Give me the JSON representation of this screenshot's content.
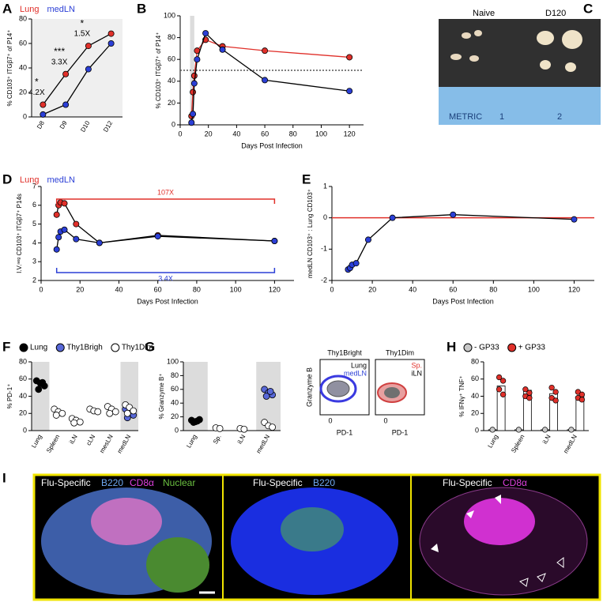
{
  "chart_data": [
    {
      "type": "line",
      "panel": "A",
      "ylabel": "% CD103⁺ ITGβ7⁺ of P14⁺",
      "plot_background": "#efefef",
      "categories": [
        "D8",
        "D9",
        "D10",
        "D12"
      ],
      "ylim": [
        0,
        80
      ],
      "yticks": [
        0,
        20,
        40,
        60,
        80
      ],
      "legend": "top",
      "series": [
        {
          "name": "Lung",
          "color": "#e0302a",
          "line_color": "#000000",
          "values": [
            10,
            35,
            58,
            68
          ]
        },
        {
          "name": "medLN",
          "color": "#2b3fd6",
          "line_color": "#000000",
          "values": [
            2,
            10,
            39,
            60
          ]
        }
      ],
      "annotations": [
        {
          "stars": "*",
          "text": "4.2X"
        },
        {
          "stars": "***",
          "text": "3.3X"
        },
        {
          "stars": "*",
          "text": "1.5X"
        }
      ]
    },
    {
      "type": "line",
      "panel": "B",
      "ylabel": "% CD103⁺ ITGβ7⁺ of P14⁺",
      "xlabel": "Days Post Infection",
      "x": [
        8,
        9,
        10,
        12,
        18,
        30,
        60,
        120
      ],
      "xlim": [
        0,
        130
      ],
      "xticks": [
        0,
        20,
        40,
        60,
        80,
        100,
        120
      ],
      "ylim": [
        0,
        100
      ],
      "yticks": [
        0,
        20,
        40,
        60,
        80,
        100
      ],
      "shaded": [
        7,
        10
      ],
      "hline": 50,
      "hline_color": "#555555",
      "hline_dash": "2,2",
      "series": [
        {
          "name": "Lung",
          "color": "#e0302a",
          "line_color": "#e0302a",
          "values": [
            8,
            30,
            45,
            68,
            78,
            72,
            68,
            62
          ]
        },
        {
          "name": "medLN",
          "color": "#2b3fd6",
          "line_color": "#000000",
          "values": [
            2,
            10,
            38,
            60,
            84,
            69,
            41,
            31
          ]
        }
      ]
    },
    {
      "type": "line",
      "panel": "D",
      "ylabel": "I.V.ⁿᵉᵍ CD103⁺ ITGβ7⁺ P14s",
      "xlabel": "Days Post Infection",
      "legend": "top",
      "x": [
        8,
        9,
        10,
        12,
        18,
        30,
        60,
        120
      ],
      "xlim": [
        0,
        130
      ],
      "xticks": [
        0,
        20,
        40,
        60,
        80,
        100,
        120
      ],
      "ylim": [
        2,
        7
      ],
      "yticks": [
        2,
        3,
        4,
        5,
        6,
        7
      ],
      "series": [
        {
          "name": "Lung",
          "color": "#e0302a",
          "line_color": "#000000",
          "values": [
            5.5,
            6.0,
            6.15,
            6.1,
            5.0,
            4.0,
            4.4,
            4.1
          ]
        },
        {
          "name": "medLN",
          "color": "#2b3fd6",
          "line_color": "#000000",
          "values": [
            3.65,
            4.3,
            4.6,
            4.7,
            4.2,
            4.0,
            4.35,
            4.1
          ]
        }
      ],
      "brackets": [
        {
          "text": "107X",
          "color": "#e0302a"
        },
        {
          "text": "3.4X",
          "color": "#2b3fd6"
        }
      ]
    },
    {
      "type": "line",
      "panel": "E",
      "ylabel": "medLN CD103⁺ : Lung CD103⁺",
      "xlabel": "Days Post Infection",
      "x": [
        8,
        9,
        10,
        12,
        18,
        30,
        60,
        120
      ],
      "xlim": [
        0,
        130
      ],
      "xticks": [
        0,
        20,
        40,
        60,
        80,
        100,
        120
      ],
      "ylim": [
        -2,
        1
      ],
      "yticks": [
        -2,
        -1,
        0,
        1
      ],
      "hline": 0,
      "hline_color": "#e0302a",
      "color": "#2b3fd6",
      "line_color": "#000000",
      "values": [
        -1.65,
        -1.6,
        -1.5,
        -1.45,
        -0.7,
        0,
        0.1,
        -0.05
      ]
    },
    {
      "type": "strip",
      "panel": "F",
      "ylabel": "% PD-1⁺",
      "legend": "top",
      "categories": [
        "Lung",
        "Spleen",
        "iLN",
        "cLN",
        "mesLN",
        "medLN"
      ],
      "shaded_categories": [
        "Lung",
        "medLN"
      ],
      "ylim": [
        0,
        80
      ],
      "yticks": [
        0,
        20,
        40,
        60,
        80
      ],
      "series": [
        {
          "name": "Lung",
          "color": "#000000",
          "values": [
            [
              58,
              55,
              52,
              48,
              56
            ],
            null,
            null,
            null,
            null,
            null
          ]
        },
        {
          "name": "Thy1Brigh",
          "color": "#5868d8",
          "values": [
            null,
            null,
            null,
            null,
            null,
            [
              25,
              20,
              18,
              15
            ]
          ]
        },
        {
          "name": "Thy1Dim",
          "color": "#ffffff",
          "values": [
            null,
            [
              25,
              22,
              20,
              18
            ],
            [
              14,
              12,
              10,
              9
            ],
            [
              25,
              23,
              22
            ],
            [
              28,
              25,
              22,
              20
            ],
            [
              30,
              27,
              23,
              20
            ]
          ]
        }
      ]
    },
    {
      "type": "strip",
      "panel": "G",
      "ylabel": "% Granzyme B⁺",
      "categories": [
        "Lung",
        "Sp.",
        "iLN",
        "medLN"
      ],
      "shaded_categories": [
        "Lung",
        "medLN"
      ],
      "ylim": [
        0,
        100
      ],
      "yticks": [
        0,
        20,
        40,
        60,
        80,
        100
      ],
      "series": [
        {
          "color": "#000000",
          "values": [
            [
              15,
              13,
              16,
              12,
              14
            ],
            null,
            null,
            null
          ]
        },
        {
          "color": "#5868d8",
          "values": [
            null,
            null,
            null,
            [
              60,
              55,
              52,
              50,
              57
            ]
          ]
        },
        {
          "color": "#ffffff",
          "values": [
            null,
            [
              4,
              3
            ],
            [
              3,
              2
            ],
            [
              12,
              7,
              5
            ]
          ]
        }
      ]
    },
    {
      "type": "bar",
      "panel": "H",
      "ylabel": "% IFNγ⁺ TNF⁺",
      "legend": "top",
      "categories": [
        "Lung",
        "Spleen",
        "iLN",
        "medLN"
      ],
      "ylim": [
        0,
        80
      ],
      "yticks": [
        0,
        20,
        40,
        60,
        80
      ],
      "series": [
        {
          "name": "- GP33",
          "color": "#c8c8c8",
          "values": [
            1,
            1,
            1,
            1
          ]
        },
        {
          "name": "+ GP33",
          "color": "#e0302a",
          "values": [
            52,
            47,
            43,
            40
          ],
          "points": [
            [
              62,
              58,
              48,
              42
            ],
            [
              48,
              44,
              40,
              38
            ],
            [
              50,
              45,
              38,
              35
            ],
            [
              45,
              42,
              38,
              36
            ]
          ]
        }
      ]
    }
  ],
  "panel_C": {
    "letter": "C",
    "labels": [
      "Naive",
      "D120"
    ],
    "ruler": [
      "METRIC",
      "1",
      "2"
    ]
  },
  "panel_flow": {
    "ylabel": "Granzyme B",
    "plots": [
      {
        "title": "Thy1Bright",
        "labels": [
          "Lung",
          "medLN"
        ],
        "tick": "0",
        "xlabel": "PD-1"
      },
      {
        "title": "Thy1Dim",
        "labels": [
          "Sp.",
          "iLN"
        ],
        "tick": "0",
        "xlabel": "PD-1"
      }
    ]
  },
  "panel_I": {
    "letter": "I",
    "images": [
      {
        "labels": [
          "Flu-Specific",
          "B220",
          "CD8α",
          "Nuclear"
        ]
      },
      {
        "labels": [
          "Flu-Specific",
          "B220"
        ]
      },
      {
        "labels": [
          "Flu-Specific",
          "CD8α"
        ]
      }
    ]
  }
}
